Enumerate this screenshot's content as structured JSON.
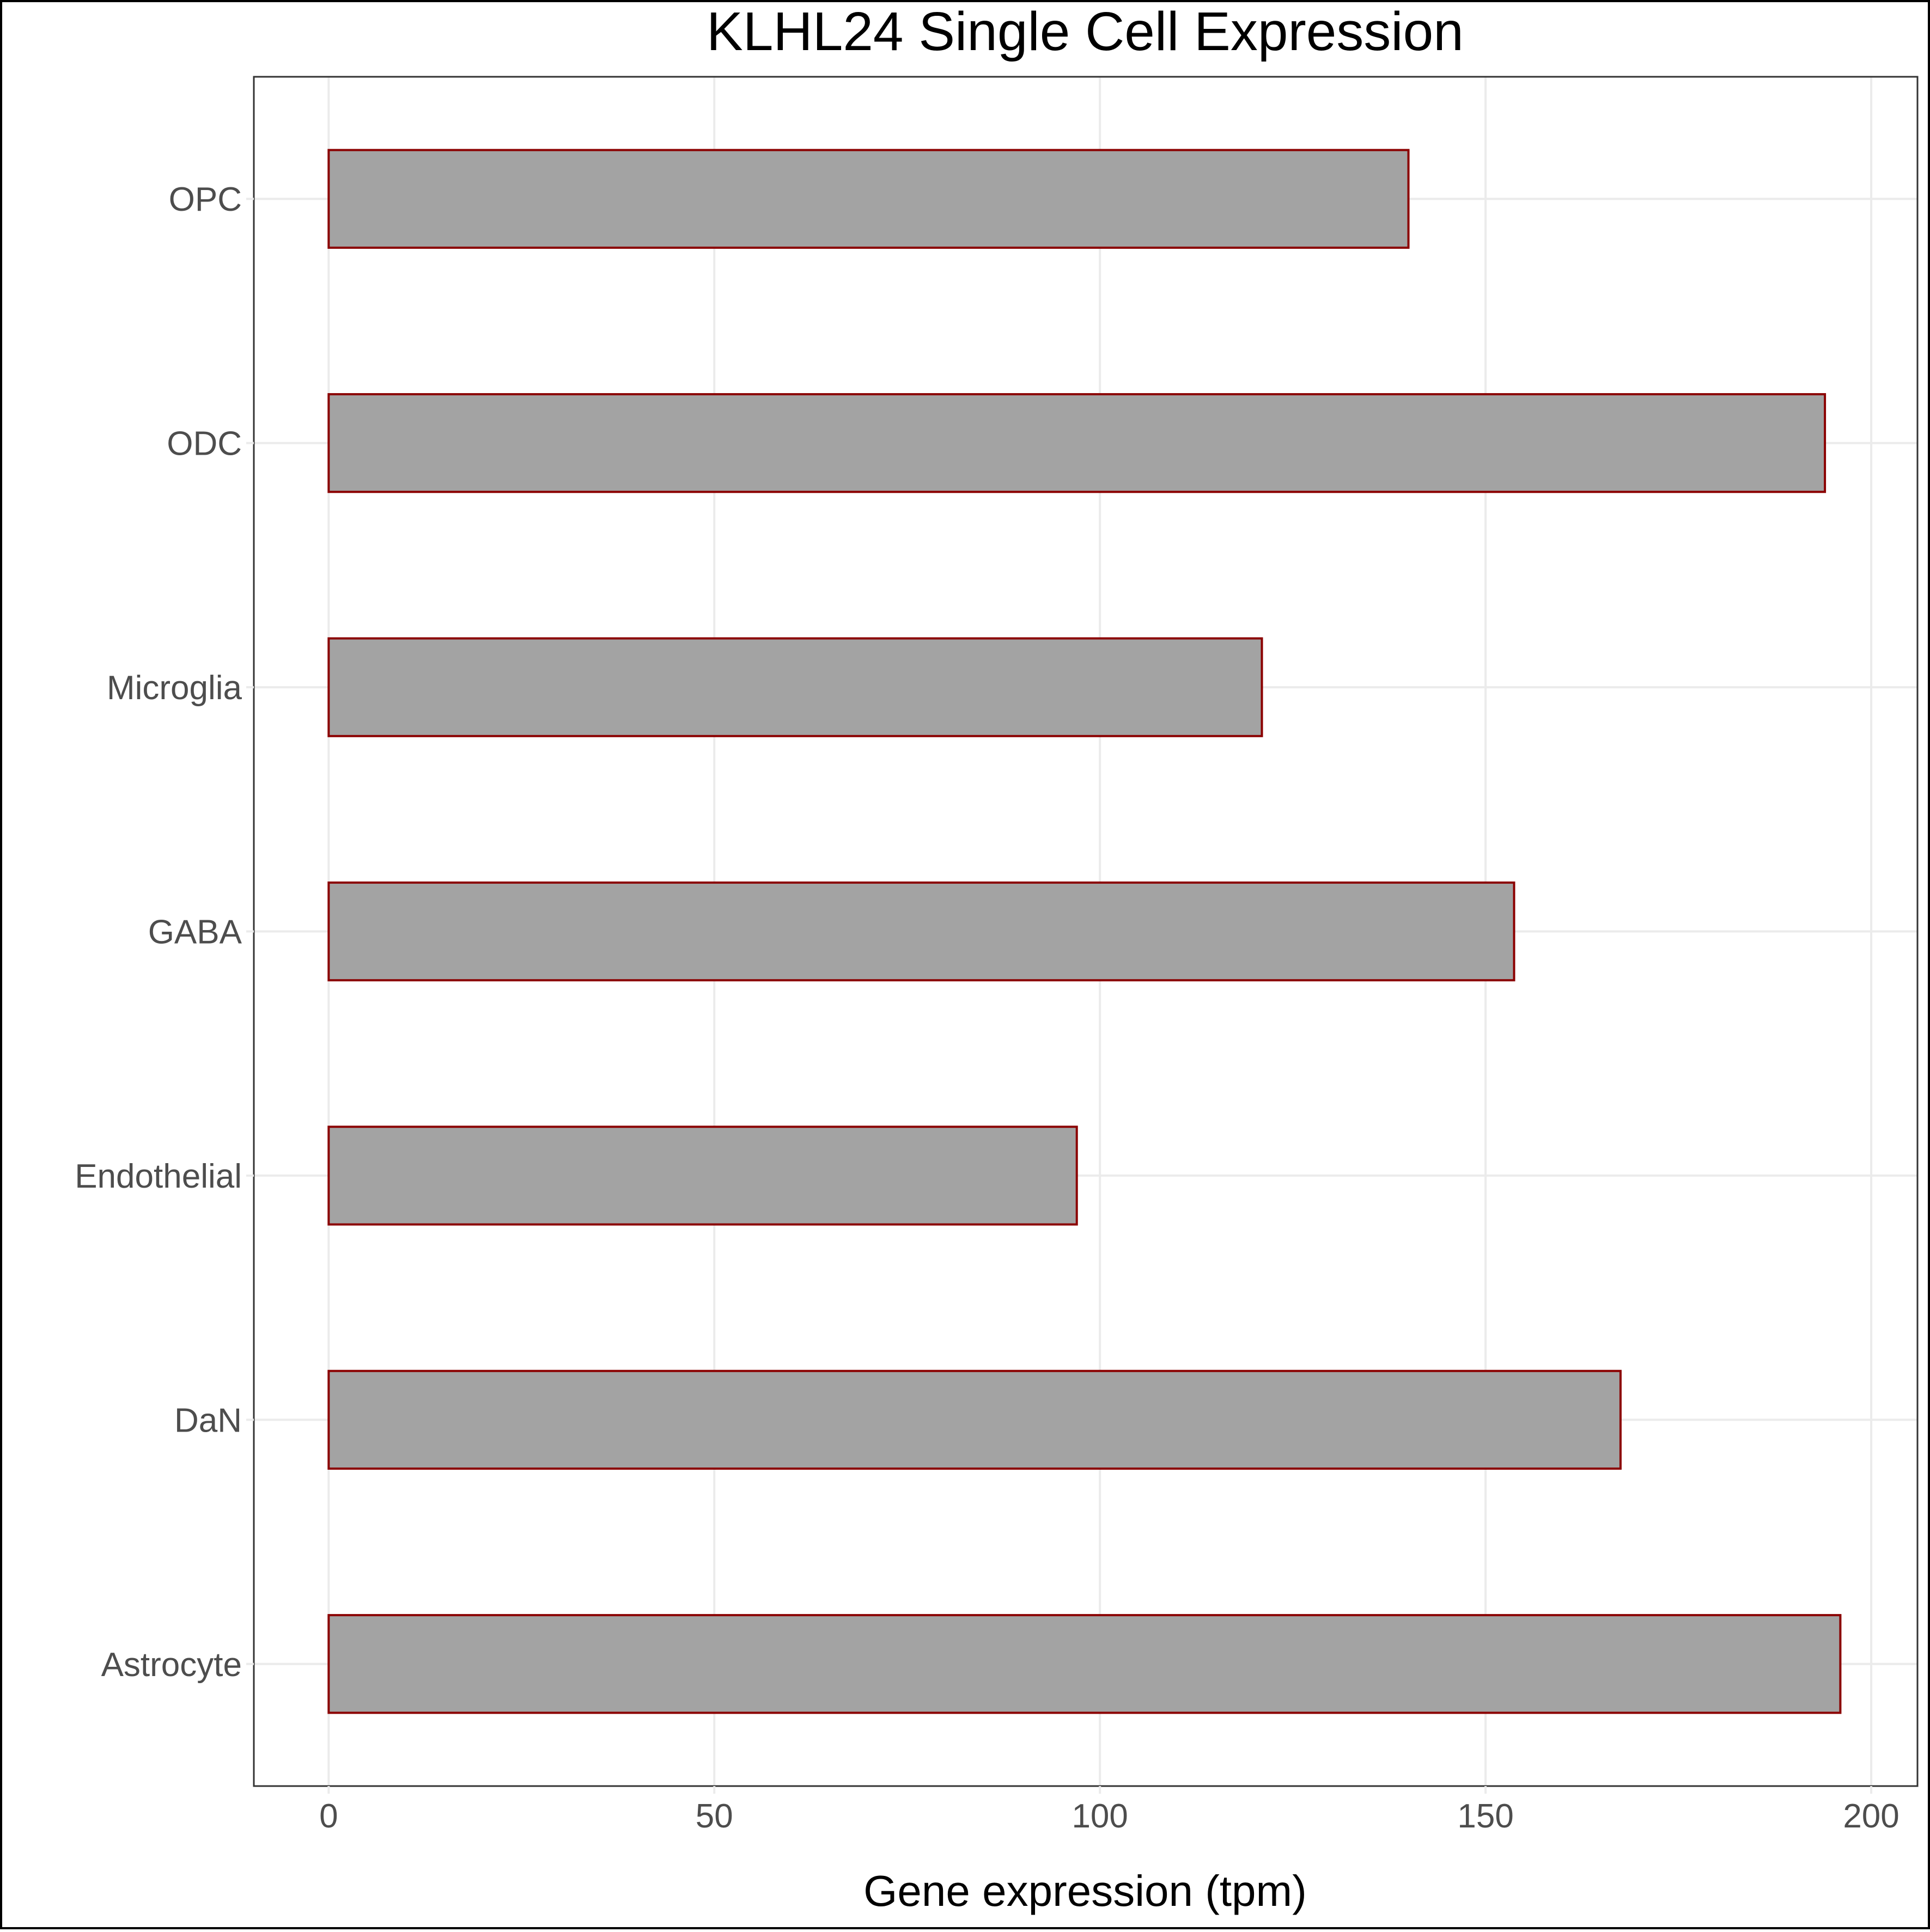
{
  "chart_data": {
    "type": "bar",
    "orientation": "horizontal",
    "title": "KLHL24 Single Cell Expression",
    "xlabel": "Gene expression (tpm)",
    "ylabel": "",
    "categories": [
      "Astrocyte",
      "DaN",
      "Endothelial",
      "GABA",
      "Microglia",
      "ODC",
      "OPC"
    ],
    "values": [
      196,
      167.5,
      97,
      153.7,
      121,
      194,
      140
    ],
    "xlim": [
      -9.7,
      206
    ],
    "xticks": [
      0,
      50,
      100,
      150,
      200
    ],
    "xtick_labels": [
      "0",
      "50",
      "100",
      "150",
      "200"
    ],
    "grid": true,
    "legend": "none",
    "colors": {
      "bar_fill": "#a3a3a3",
      "bar_stroke": "#8b0000",
      "grid": "#ebebeb",
      "tick_text": "#4d4d4d",
      "panel_border": "#333333"
    }
  }
}
